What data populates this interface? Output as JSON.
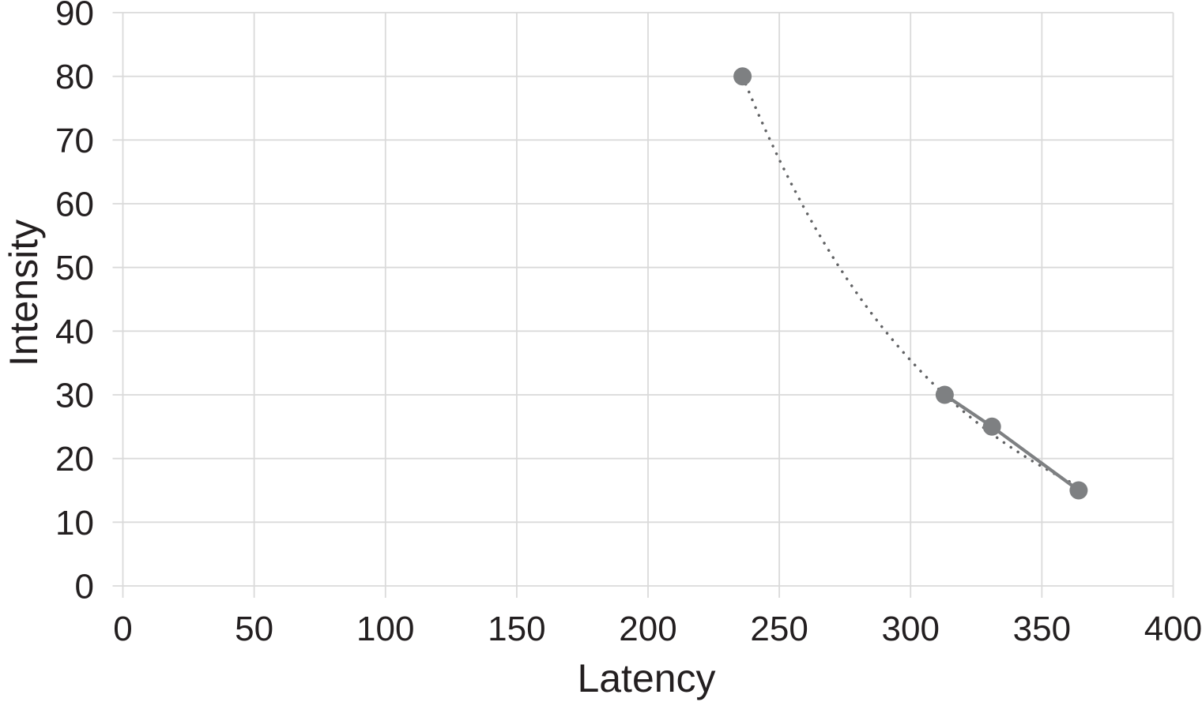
{
  "chart_data": {
    "type": "scatter",
    "title": "",
    "xlabel": "Latency",
    "ylabel": "Intensity",
    "xlim": [
      0,
      400
    ],
    "ylim": [
      0,
      90
    ],
    "x_ticks": [
      0,
      50,
      100,
      150,
      200,
      250,
      300,
      350,
      400
    ],
    "y_ticks": [
      0,
      10,
      20,
      30,
      40,
      50,
      60,
      70,
      80,
      90
    ],
    "grid": "both",
    "legend": "none",
    "text_color": "#231f20",
    "gridline_color": "#dadada",
    "series": [
      {
        "name": "dotted-trend",
        "type": "trend",
        "style": "dotted",
        "model": "exponential-decay",
        "color": "#616264",
        "x_range": [
          236,
          364
        ],
        "params": {
          "y0": 80,
          "x0": 236,
          "k": 0.012738
        },
        "passes_through": [
          [
            236,
            80
          ],
          [
            313,
            30
          ]
        ]
      },
      {
        "name": "solid-connector",
        "type": "line",
        "style": "solid",
        "color": "#7e8082",
        "points": [
          [
            313,
            30
          ],
          [
            331,
            25
          ],
          [
            364,
            15
          ]
        ]
      },
      {
        "name": "data-points",
        "type": "scatter",
        "marker": "circle",
        "color": "#7e8082",
        "points": [
          [
            236,
            80
          ],
          [
            313,
            30
          ],
          [
            331,
            25
          ],
          [
            364,
            15
          ]
        ]
      }
    ]
  }
}
